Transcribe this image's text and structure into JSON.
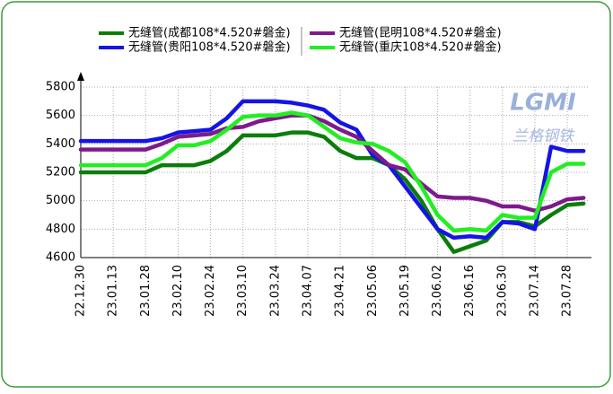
{
  "chart_data": {
    "type": "line",
    "categories": [
      "22.12.30",
      null,
      "23.01.13",
      null,
      "23.01.28",
      null,
      "23.02.10",
      null,
      "23.02.24",
      null,
      "23.03.10",
      null,
      "23.03.24",
      null,
      "23.04.07",
      null,
      "23.04.21",
      null,
      "23.05.06",
      null,
      "23.05.19",
      null,
      "23.06.02",
      null,
      "23.06.16",
      null,
      "23.06.30",
      null,
      "23.07.14",
      null,
      "23.07.28",
      null
    ],
    "series": [
      {
        "name": "无缝管(成都108*4.520#磐金)",
        "color": "#0b7d0b",
        "values": [
          5200,
          5200,
          5200,
          5200,
          5200,
          5250,
          5250,
          5250,
          5280,
          5350,
          5460,
          5460,
          5460,
          5480,
          5480,
          5450,
          5350,
          5300,
          5300,
          5250,
          5150,
          5000,
          4800,
          4640,
          4680,
          4720,
          4850,
          4850,
          4820,
          4900,
          4970,
          4980
        ]
      },
      {
        "name": "无缝管(贵阳108*4.520#磐金)",
        "color": "#1414e6",
        "values": [
          5420,
          5420,
          5420,
          5420,
          5420,
          5440,
          5480,
          5490,
          5500,
          5580,
          5700,
          5700,
          5700,
          5690,
          5670,
          5640,
          5550,
          5500,
          5320,
          5250,
          5100,
          4950,
          4800,
          4740,
          4750,
          4740,
          4850,
          4840,
          4800,
          5380,
          5350,
          5350
        ]
      },
      {
        "name": "无缝管(昆明108*4.520#磐金)",
        "color": "#7d1a8c",
        "values": [
          5360,
          5360,
          5360,
          5360,
          5360,
          5400,
          5450,
          5460,
          5470,
          5510,
          5520,
          5560,
          5580,
          5600,
          5600,
          5560,
          5500,
          5450,
          5350,
          5250,
          5220,
          5120,
          5030,
          5020,
          5020,
          5000,
          4960,
          4960,
          4930,
          4960,
          5010,
          5020
        ]
      },
      {
        "name": "无缝管(重庆108*4.520#磐金)",
        "color": "#22ee22",
        "values": [
          5250,
          5250,
          5250,
          5250,
          5250,
          5300,
          5390,
          5390,
          5420,
          5500,
          5590,
          5600,
          5600,
          5620,
          5600,
          5520,
          5440,
          5410,
          5400,
          5350,
          5270,
          5100,
          4900,
          4790,
          4800,
          4790,
          4900,
          4880,
          4880,
          5200,
          5260,
          5260
        ]
      }
    ],
    "ylim": [
      4600,
      5800
    ],
    "yticks": [
      4600,
      4800,
      5000,
      5200,
      5400,
      5600,
      5800
    ],
    "grid": true,
    "watermark": "LGMI",
    "watermark_sub": "兰格钢铁"
  }
}
